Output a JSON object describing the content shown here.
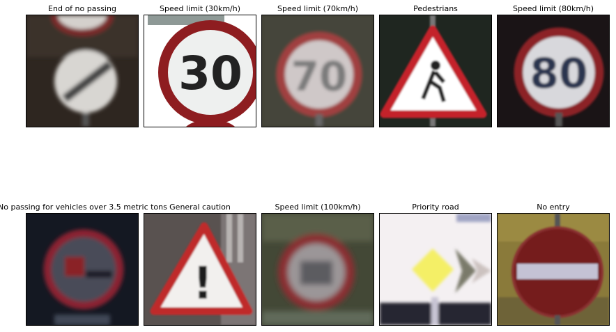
{
  "grid": {
    "rows": [
      [
        {
          "label": "End of no passing",
          "sign_icon": "end-of-no-passing-sign"
        },
        {
          "label": "Speed limit (30km/h)",
          "sign_icon": "speed-limit-30-sign",
          "sign_text": "30"
        },
        {
          "label": "Speed limit (70km/h)",
          "sign_icon": "speed-limit-70-sign",
          "sign_text": "70"
        },
        {
          "label": "Pedestrians",
          "sign_icon": "pedestrians-warning-sign"
        },
        {
          "label": "Speed limit (80km/h)",
          "sign_icon": "speed-limit-80-sign",
          "sign_text": "80"
        }
      ],
      [
        {
          "label": "No passing for vehicles over 3.5 metric tons",
          "sign_icon": "no-passing-trucks-sign"
        },
        {
          "label": "General caution",
          "sign_icon": "general-caution-sign",
          "sign_text": "!"
        },
        {
          "label": "Speed limit (100km/h)",
          "sign_icon": "speed-limit-100-sign"
        },
        {
          "label": "Priority road",
          "sign_icon": "priority-road-sign"
        },
        {
          "label": "No entry",
          "sign_icon": "no-entry-sign"
        }
      ]
    ]
  }
}
